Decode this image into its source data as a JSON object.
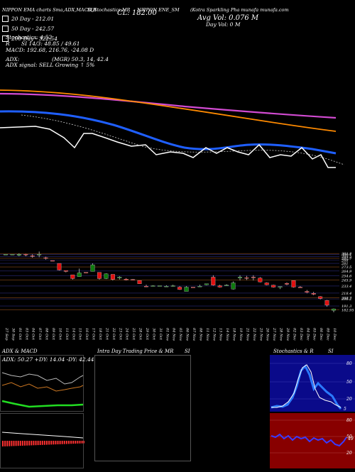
{
  "header": {
    "left": "NIPPON EMA charts Sma,ADX,MACD,R",
    "mid": "SI,Stochastics,MR",
    "cl": "CL: 182.00",
    "ticker": "NIPPON ENE_SM",
    "source": "(Kotra Sparkling Pha munafa munafa.com",
    "vol_avg": "Avg Vol: 0.076  M",
    "vol_day": "Day Vol: 0   M"
  },
  "indicators": [
    {
      "label": "20  Day - 212.01",
      "color": "#ffffff"
    },
    {
      "label": "50  Day - 242.57",
      "color": "#ffffff"
    },
    {
      "label": "200  Day - 322.54",
      "color": "#ffffff"
    }
  ],
  "stats": {
    "stochastics": "Stochastics: 4.52",
    "rsi": "SI 14/3: 48.85 / 49.61",
    "r_label": "R",
    "macd": "MACD: 192.68, 216.76, -24.08  D",
    "adx": "ADX:",
    "mgr": "(MGR) 50.3,  14,  42.4",
    "adx_signal": "ADX  signal: SELL  Growing ↑ 5%"
  },
  "chart_data": {
    "type": "candlestick",
    "dates": [
      "27 Sep",
      "30 Sep",
      "01 Oct",
      "03 Oct",
      "04 Oct",
      "07 Oct",
      "08 Oct",
      "09 Oct",
      "10 Oct",
      "11 Oct",
      "14 Oct",
      "15 Oct",
      "16 Oct",
      "17 Oct",
      "18 Oct",
      "21 Oct",
      "22 Oct",
      "23 Oct",
      "24 Oct",
      "25 Oct",
      "28 Oct",
      "29 Oct",
      "30 Oct",
      "31 Oct",
      "01 Nov",
      "04 Nov",
      "05 Nov",
      "06 Nov",
      "07 Nov",
      "08 Nov",
      "11 Nov",
      "12 Nov",
      "13 Nov",
      "14 Nov",
      "18 Nov",
      "19 Nov",
      "21 Nov",
      "22 Nov",
      "25 Nov",
      "26 Nov",
      "27 Nov",
      "28 Nov",
      "29 Nov",
      "02 Dec",
      "03 Dec",
      "04 Dec",
      "05 Dec",
      "06 Dec",
      "09 Dec",
      "10 Dec"
    ],
    "candles": [
      {
        "o": 300,
        "h": 300,
        "l": 300,
        "c": 300,
        "dir": "up"
      },
      {
        "o": 300,
        "h": 300,
        "l": 300,
        "c": 300,
        "dir": "up"
      },
      {
        "o": 298,
        "h": 302,
        "l": 296,
        "c": 300,
        "dir": "up"
      },
      {
        "o": 300,
        "h": 301,
        "l": 296,
        "c": 300,
        "dir": "down"
      },
      {
        "o": 297,
        "h": 300,
        "l": 293,
        "c": 297,
        "dir": "down"
      },
      {
        "o": 300,
        "h": 306,
        "l": 294,
        "c": 300,
        "dir": "up"
      },
      {
        "o": 293,
        "h": 295,
        "l": 289,
        "c": 292,
        "dir": "down"
      },
      {
        "o": 287,
        "h": 287,
        "l": 286,
        "c": 286,
        "dir": "down"
      },
      {
        "o": 281,
        "h": 281,
        "l": 266,
        "c": 267,
        "dir": "down"
      },
      {
        "o": 266,
        "h": 266,
        "l": 262,
        "c": 264,
        "dir": "down"
      },
      {
        "o": 257,
        "h": 257,
        "l": 247,
        "c": 249,
        "dir": "down"
      },
      {
        "o": 253,
        "h": 270,
        "l": 253,
        "c": 261,
        "dir": "up"
      },
      {
        "o": 262,
        "h": 262,
        "l": 260,
        "c": 261,
        "dir": "down"
      },
      {
        "o": 264,
        "h": 281,
        "l": 264,
        "c": 278,
        "dir": "up"
      },
      {
        "o": 262,
        "h": 262,
        "l": 247,
        "c": 249,
        "dir": "down"
      },
      {
        "o": 249,
        "h": 260,
        "l": 248,
        "c": 259,
        "dir": "up"
      },
      {
        "o": 258,
        "h": 258,
        "l": 245,
        "c": 247,
        "dir": "down"
      },
      {
        "o": 252,
        "h": 254,
        "l": 247,
        "c": 250,
        "dir": "up"
      },
      {
        "o": 248,
        "h": 250,
        "l": 245,
        "c": 246,
        "dir": "down"
      },
      {
        "o": 247,
        "h": 248,
        "l": 245,
        "c": 247,
        "dir": "down"
      },
      {
        "o": 245,
        "h": 245,
        "l": 238,
        "c": 238,
        "dir": "down"
      },
      {
        "o": 233,
        "h": 236,
        "l": 231,
        "c": 233,
        "dir": "down"
      },
      {
        "o": 234,
        "h": 235,
        "l": 233,
        "c": 234,
        "dir": "up"
      },
      {
        "o": 234,
        "h": 234,
        "l": 233,
        "c": 233,
        "dir": "up"
      },
      {
        "o": 233,
        "h": 235,
        "l": 232,
        "c": 233,
        "dir": "up"
      },
      {
        "o": 234,
        "h": 236,
        "l": 232,
        "c": 233,
        "dir": "up"
      },
      {
        "o": 231,
        "h": 233,
        "l": 225,
        "c": 226,
        "dir": "down"
      },
      {
        "o": 222,
        "h": 233,
        "l": 222,
        "c": 231,
        "dir": "up"
      },
      {
        "o": 231,
        "h": 231,
        "l": 230,
        "c": 230,
        "dir": "down"
      },
      {
        "o": 233,
        "h": 236,
        "l": 232,
        "c": 233,
        "dir": "up"
      },
      {
        "o": 238,
        "h": 238,
        "l": 235,
        "c": 236,
        "dir": "up"
      },
      {
        "o": 252,
        "h": 256,
        "l": 234,
        "c": 235,
        "dir": "down"
      },
      {
        "o": 234,
        "h": 236,
        "l": 230,
        "c": 231,
        "dir": "down"
      },
      {
        "o": 235,
        "h": 237,
        "l": 234,
        "c": 235,
        "dir": "up"
      },
      {
        "o": 227,
        "h": 243,
        "l": 226,
        "c": 240,
        "dir": "up"
      },
      {
        "o": 252,
        "h": 256,
        "l": 245,
        "c": 250,
        "dir": "up"
      },
      {
        "o": 251,
        "h": 255,
        "l": 246,
        "c": 250,
        "dir": "down"
      },
      {
        "o": 251,
        "h": 256,
        "l": 245,
        "c": 252,
        "dir": "down"
      },
      {
        "o": 250,
        "h": 252,
        "l": 241,
        "c": 242,
        "dir": "down"
      },
      {
        "o": 240,
        "h": 241,
        "l": 235,
        "c": 236,
        "dir": "down"
      },
      {
        "o": 235,
        "h": 236,
        "l": 230,
        "c": 231,
        "dir": "down"
      },
      {
        "o": 232,
        "h": 232,
        "l": 227,
        "c": 231,
        "dir": "up"
      },
      {
        "o": 237,
        "h": 241,
        "l": 235,
        "c": 239,
        "dir": "down"
      },
      {
        "o": 245,
        "h": 245,
        "l": 230,
        "c": 231,
        "dir": "down"
      },
      {
        "o": 230,
        "h": 233,
        "l": 230,
        "c": 231,
        "dir": "down"
      },
      {
        "o": 222,
        "h": 225,
        "l": 218,
        "c": 220,
        "dir": "down"
      },
      {
        "o": 218,
        "h": 221,
        "l": 214,
        "c": 216,
        "dir": "down"
      },
      {
        "o": 211,
        "h": 212,
        "l": 205,
        "c": 207,
        "dir": "down"
      },
      {
        "o": 203,
        "h": 204,
        "l": 190,
        "c": 193,
        "dir": "down"
      },
      {
        "o": 185,
        "h": 186,
        "l": 178,
        "c": 182,
        "dir": "up"
      }
    ],
    "price_ticks": [
      "301.8",
      "300.1",
      "295.2",
      "291.7",
      "288",
      "281",
      "273.5",
      "264.9",
      "254.6",
      "245.9",
      "233.4",
      "218.4",
      "208.7",
      "206.2",
      "191.3",
      "182.95"
    ],
    "ylim": [
      175,
      305
    ]
  },
  "panels": {
    "adx": {
      "title": "ADX  & MACD",
      "readout": "ADX: 50.27  +DY: 14.04  -DY: 42.44"
    },
    "intraday": {
      "title": "Intra  Day Trading Price  & MR",
      "si": "SI"
    },
    "stoch": {
      "title": "Stochastics & R",
      "si": "SI",
      "ticks": [
        "80",
        "50",
        "20"
      ],
      "last": "5"
    },
    "rsi": {
      "ticks": [
        "80",
        "50",
        "20"
      ],
      "last": "49"
    }
  },
  "colors": {
    "ema20": "#ffffff",
    "ema50": "#1f5fff",
    "ema100": "#ff8a00",
    "ema200": "#d24bd2",
    "up": "#0f7a0f",
    "down": "#e01010"
  }
}
